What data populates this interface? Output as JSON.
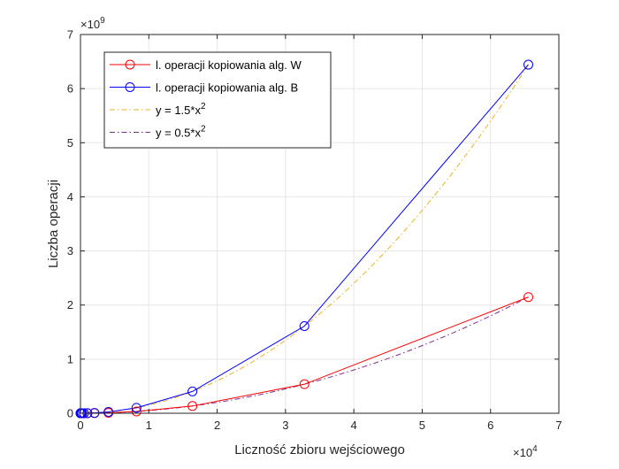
{
  "chart_data": {
    "type": "line",
    "xlabel": "Liczność zbioru wejściowego",
    "ylabel": "Liczba operacji",
    "x_exponent_label": "×10",
    "x_exponent_power": "4",
    "y_exponent_label": "×10",
    "y_exponent_power": "9",
    "xlim": [
      0,
      70000
    ],
    "ylim": [
      0,
      7000000000
    ],
    "x_ticks": [
      0,
      10000,
      20000,
      30000,
      40000,
      50000,
      60000,
      70000
    ],
    "x_tick_labels": [
      "0",
      "1",
      "2",
      "3",
      "4",
      "5",
      "6",
      "7"
    ],
    "y_ticks": [
      0,
      1000000000,
      2000000000,
      3000000000,
      4000000000,
      5000000000,
      6000000000,
      7000000000
    ],
    "y_tick_labels": [
      "0",
      "1",
      "2",
      "3",
      "4",
      "5",
      "6",
      "7"
    ],
    "grid": true,
    "legend_position": "top-left",
    "series": [
      {
        "name": "l. operacji kopiowania alg. W",
        "color": "#ff0000",
        "style": "solid",
        "marker": "circle",
        "x": [
          8,
          16,
          32,
          64,
          128,
          256,
          512,
          1024,
          2048,
          4096,
          8192,
          16384,
          32768,
          65536
        ],
        "y": [
          32,
          128,
          512,
          2048,
          8192,
          32768,
          131072,
          524288,
          2100000,
          8400000,
          33500000,
          134000000,
          537000000,
          2147000000
        ]
      },
      {
        "name": "l. operacji kopiowania alg. B",
        "color": "#0000ff",
        "style": "solid",
        "marker": "circle",
        "x": [
          8,
          16,
          32,
          64,
          128,
          256,
          512,
          1024,
          2048,
          4096,
          8192,
          16384,
          32768,
          65536
        ],
        "y": [
          96,
          384,
          1536,
          6144,
          24576,
          98304,
          393216,
          1573000,
          6290000,
          25200000,
          100700000,
          402700000,
          1611000000,
          6443000000
        ]
      },
      {
        "name": "y = 1.5*x",
        "name_power": "2",
        "color": "#edb120",
        "style": "dashdot",
        "marker": "none",
        "formula": "1.5*x^2",
        "x_range": [
          0,
          65536
        ]
      },
      {
        "name": "y = 0.5*x",
        "name_power": "2",
        "color": "#7e2f8e",
        "style": "dashdot",
        "marker": "none",
        "formula": "0.5*x^2",
        "x_range": [
          0,
          65536
        ]
      }
    ]
  }
}
